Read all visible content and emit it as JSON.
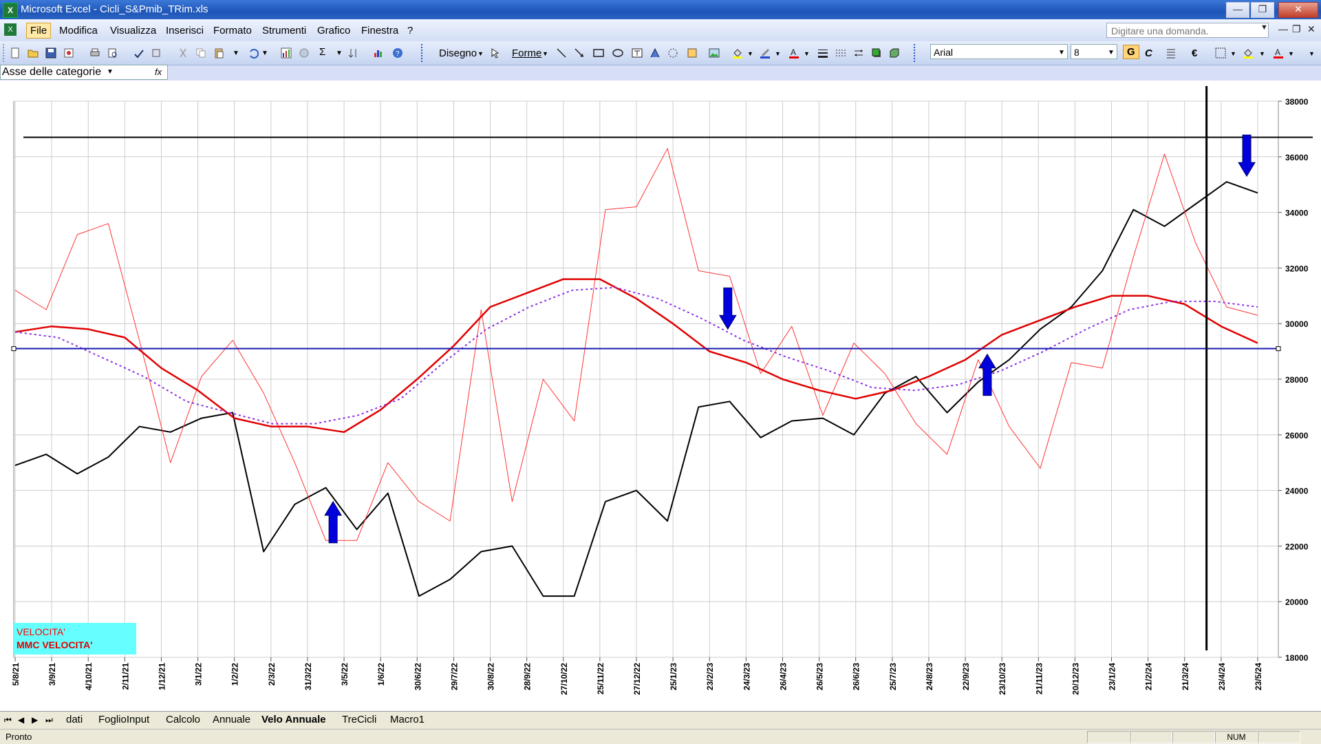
{
  "window": {
    "title": "Microsoft Excel - Cicli_S&Pmib_TRim.xls",
    "app_icon": "excel-icon",
    "minimize_glyph": "—",
    "maximize_glyph": "❐",
    "close_glyph": "✕"
  },
  "menu": {
    "items": [
      "File",
      "Modifica",
      "Visualizza",
      "Inserisci",
      "Formato",
      "Strumenti",
      "Grafico",
      "Finestra",
      "?"
    ],
    "ask_placeholder": "Digitare una domanda.",
    "mdi_glyphs": [
      "—",
      "❐",
      "✕"
    ]
  },
  "toolbar": {
    "drawing_label": "Disegno",
    "shapes_label": "Forme",
    "font_name": "Arial",
    "font_size": "8",
    "bold_label": "G",
    "italic_label": "C",
    "euro_label": "€"
  },
  "formula_bar": {
    "name_box": "Asse delle categorie",
    "fx_label": "fx"
  },
  "sheet_tabs": {
    "nav_glyphs": [
      "⏮",
      "◀",
      "▶",
      "⏭"
    ],
    "tabs": [
      "dati",
      "FoglioInput",
      "Calcolo",
      "Annuale",
      "Velo Annuale",
      "TreCicli",
      "Macro1"
    ],
    "active": "Velo Annuale"
  },
  "status": {
    "text": "Pronto",
    "num": "NUM"
  },
  "chart_data": {
    "type": "line",
    "title": "",
    "xlabel": "",
    "ylabel": "",
    "ylim": [
      18000,
      38000
    ],
    "y_ticks": [
      18000,
      20000,
      22000,
      24000,
      26000,
      28000,
      30000,
      32000,
      34000,
      36000,
      38000
    ],
    "y_tick_labels": [
      "18000",
      "20000",
      "22000",
      "24000",
      "26000",
      "28000",
      "30000",
      "32000",
      "34000",
      "36000",
      "38000"
    ],
    "x_tick_labels": [
      "5/8/21",
      "3/9/21",
      "4/10/21",
      "2/11/21",
      "1/12/21",
      "3/1/22",
      "1/2/22",
      "2/3/22",
      "31/3/22",
      "3/5/22",
      "1/6/22",
      "30/6/22",
      "29/7/22",
      "30/8/22",
      "28/9/22",
      "27/10/22",
      "25/11/22",
      "27/12/22",
      "25/1/23",
      "23/2/23",
      "24/3/23",
      "26/4/23",
      "26/5/23",
      "26/6/23",
      "25/7/23",
      "24/8/23",
      "22/9/23",
      "23/10/23",
      "21/11/23",
      "20/12/23",
      "23/1/24",
      "21/2/24",
      "21/3/24",
      "23/4/24",
      "23/5/24"
    ],
    "grid": true,
    "legend_placement": "bottom-left",
    "legend": [
      {
        "label": "VELOCITA'",
        "color": "#ff0000"
      },
      {
        "label": "MMC VELOCITA'",
        "color": "#e00000"
      }
    ],
    "legend_bg": "#66ffff",
    "hline_black": 36700,
    "hline_blue": 29100,
    "vline_index": 32.6,
    "arrows": [
      {
        "direction": "up",
        "index": 8.7,
        "value": 23600
      },
      {
        "direction": "down",
        "index": 19.5,
        "value": 29800
      },
      {
        "direction": "up",
        "index": 26.6,
        "value": 28900
      },
      {
        "direction": "down",
        "index": 33.7,
        "value": 35300
      }
    ],
    "series": [
      {
        "color": "#000000",
        "style": "solid",
        "width": 2,
        "values": [
          24900,
          25300,
          24600,
          25200,
          26300,
          26100,
          26600,
          26800,
          21800,
          23500,
          24100,
          22600,
          23900,
          20200,
          20800,
          21800,
          22000,
          20200,
          20200,
          23600,
          24000,
          22900,
          27000,
          27200,
          25900,
          26500,
          26600,
          26000,
          27500,
          28100,
          26800,
          27900,
          28700,
          29800,
          30600,
          31900,
          34100,
          33500,
          34300,
          35100,
          34700
        ]
      },
      {
        "color": "#ff3333",
        "style": "solid",
        "width": 1,
        "values": [
          31200,
          30500,
          33200,
          33600,
          29400,
          25000,
          28100,
          29400,
          27500,
          25000,
          22200,
          22200,
          25000,
          23600,
          22900,
          30500,
          23600,
          28000,
          26500,
          34100,
          34200,
          36300,
          31900,
          31700,
          28200,
          29900,
          26700,
          29300,
          28200,
          26400,
          25300,
          28700,
          26300,
          24800,
          28600,
          28400,
          32400,
          36100,
          32900,
          30600,
          30300
        ]
      },
      {
        "color": "#e00000",
        "style": "solid",
        "width": 2.5,
        "values": [
          29700,
          29900,
          29800,
          29500,
          28400,
          27600,
          26600,
          26300,
          26300,
          26100,
          26900,
          28000,
          29200,
          30600,
          31100,
          31600,
          31600,
          30900,
          30000,
          29000,
          28600,
          28000,
          27600,
          27300,
          27600,
          28100,
          28700,
          29600,
          30100,
          30600,
          31000,
          31000,
          30700,
          29900,
          29300
        ]
      },
      {
        "color": "#8a2be2",
        "style": "dotted",
        "width": 2,
        "values": [
          29700,
          29500,
          28800,
          28100,
          27200,
          26800,
          26400,
          26400,
          26700,
          27300,
          28600,
          29800,
          30600,
          31200,
          31300,
          30900,
          30200,
          29400,
          28800,
          28300,
          27700,
          27600,
          27800,
          28300,
          29000,
          29800,
          30500,
          30800,
          30800,
          30600
        ]
      }
    ]
  }
}
